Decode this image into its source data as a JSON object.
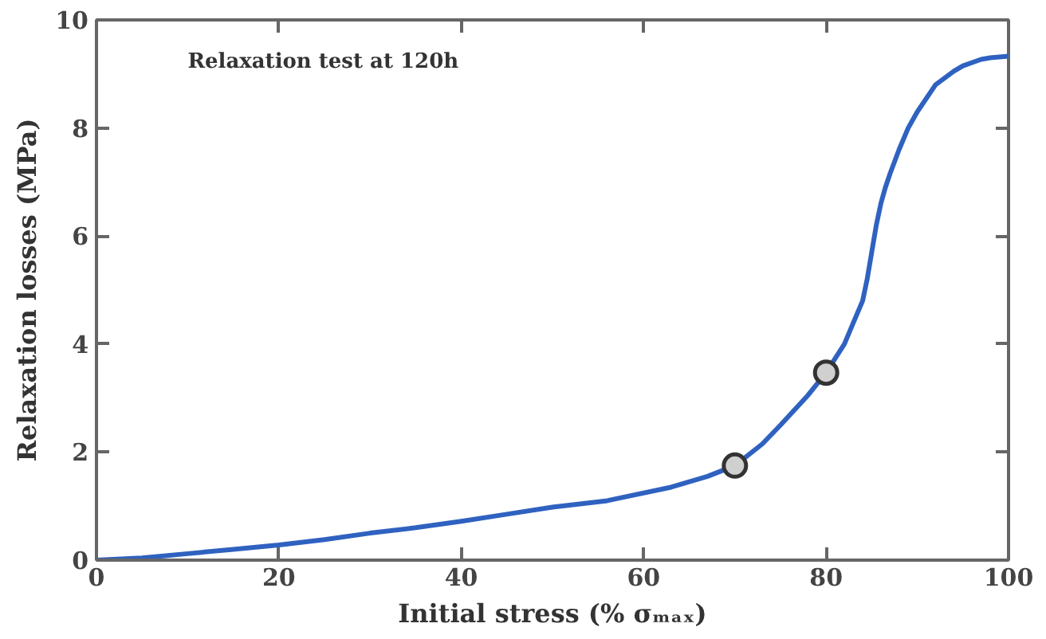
{
  "chart_data": {
    "type": "line",
    "xlabel": "Initial stress (% σₘₐₓ)",
    "ylabel": "Relaxation losses (MPa)",
    "annotations": [
      "Relaxation test at 120h"
    ],
    "xlim": [
      0,
      100
    ],
    "ylim": [
      0,
      10
    ],
    "xticks": [
      0,
      20,
      40,
      60,
      80,
      100
    ],
    "yticks": [
      0,
      2,
      4,
      6,
      8,
      10
    ],
    "grid": false,
    "series": [
      {
        "color": "#2f62c0",
        "line_style": "solid",
        "marker": "none",
        "x": [
          0,
          5,
          10,
          15,
          20,
          25,
          30,
          35,
          40,
          45,
          50,
          56,
          63,
          67,
          70,
          73,
          75,
          78,
          80,
          82,
          83,
          84,
          84.5,
          85,
          85.5,
          86,
          86.5,
          87,
          88,
          89,
          90,
          92,
          94,
          95,
          97,
          98,
          100
        ],
        "values": [
          0,
          0.04,
          0.12,
          0.2,
          0.28,
          0.38,
          0.5,
          0.6,
          0.72,
          0.85,
          0.98,
          1.1,
          1.35,
          1.55,
          1.75,
          2.15,
          2.5,
          3.05,
          3.47,
          4.0,
          4.4,
          4.8,
          5.2,
          5.7,
          6.2,
          6.6,
          6.9,
          7.15,
          7.6,
          8.0,
          8.3,
          8.8,
          9.05,
          9.15,
          9.27,
          9.3,
          9.33
        ]
      },
      {
        "type": "scatter",
        "color": "#d0d0d0",
        "marker": "circle",
        "x": [
          70,
          80
        ],
        "values": [
          1.75,
          3.47
        ]
      }
    ]
  }
}
